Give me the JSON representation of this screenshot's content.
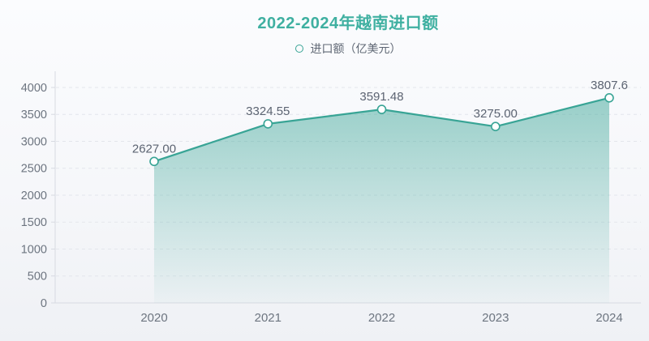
{
  "title": "2022-2024年越南进口额",
  "legend": {
    "label": "进口额（亿美元）"
  },
  "colors": {
    "title": "#3fb0a1",
    "line": "#38a495",
    "marker_fill": "#ffffff",
    "area_top": "rgba(56,164,149,0.50)",
    "area_bottom": "rgba(56,164,149,0.03)",
    "axis_line": "#d7dae1",
    "grid_line": "#e3e6ec",
    "tick_label": "#6d7580",
    "data_label": "#5c6472",
    "legend_text": "#5f6774"
  },
  "chart_data": {
    "type": "area",
    "title": "2022-2024年越南进口额",
    "categories": [
      "2020",
      "2021",
      "2022",
      "2023",
      "2024"
    ],
    "series": [
      {
        "name": "进口额（亿美元）",
        "values": [
          2627.0,
          3324.55,
          3591.48,
          3275.0,
          3807.6
        ],
        "labels": [
          "2627.00",
          "3324.55",
          "3591.48",
          "3275.00",
          "3807.6"
        ]
      }
    ],
    "xlabel": "",
    "ylabel": "",
    "ylim": [
      0,
      4000
    ],
    "ytick_step": 500,
    "grid": "horizontal-dashed",
    "legend_position": "top-center",
    "marker": "hollow-circle"
  }
}
